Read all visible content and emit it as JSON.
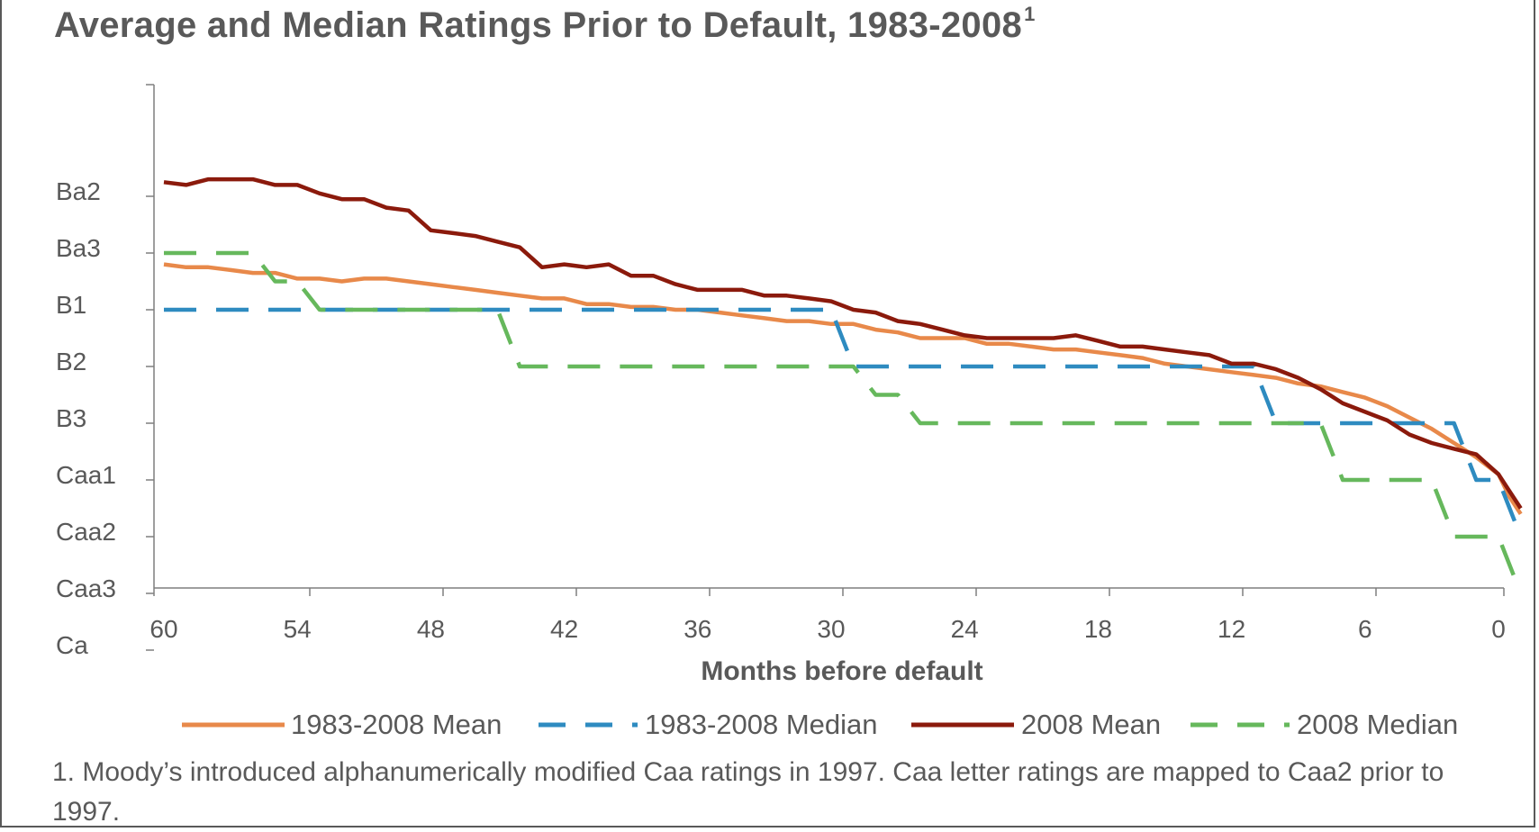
{
  "chart_data": {
    "type": "line",
    "title": "Average and Median Ratings Prior to Default, 1983-2008",
    "title_superscript": "1",
    "xlabel": "Months before default",
    "ylabel": "",
    "x_ticks": [
      "60",
      "54",
      "48",
      "42",
      "36",
      "30",
      "24",
      "18",
      "12",
      "6",
      "0"
    ],
    "y_categories": [
      "Ba2",
      "Ba3",
      "B1",
      "B2",
      "B3",
      "Caa1",
      "Caa2",
      "Caa3",
      "Ca"
    ],
    "y_numeric_note": "Ratings mapped to numeric levels: Ba2=0, Ba3=1, B1=2, B2=3, B3=4, Caa1=5, Caa2=6, Caa3=7, Ca=8",
    "xlim": [
      60,
      0
    ],
    "ylim": [
      -1,
      8
    ],
    "grid": false,
    "legend_position": "bottom",
    "series": [
      {
        "name": "1983-2008 Mean",
        "color": "#E8894A",
        "style": "solid",
        "points": [
          [
            60,
            1.2
          ],
          [
            59,
            1.25
          ],
          [
            58,
            1.25
          ],
          [
            57,
            1.3
          ],
          [
            56,
            1.35
          ],
          [
            55,
            1.35
          ],
          [
            54,
            1.45
          ],
          [
            53,
            1.45
          ],
          [
            52,
            1.5
          ],
          [
            51,
            1.45
          ],
          [
            50,
            1.45
          ],
          [
            49,
            1.5
          ],
          [
            48,
            1.55
          ],
          [
            47,
            1.6
          ],
          [
            46,
            1.65
          ],
          [
            45,
            1.7
          ],
          [
            44,
            1.75
          ],
          [
            43,
            1.8
          ],
          [
            42,
            1.8
          ],
          [
            41,
            1.9
          ],
          [
            40,
            1.9
          ],
          [
            39,
            1.95
          ],
          [
            38,
            1.95
          ],
          [
            37,
            2.0
          ],
          [
            36,
            2.0
          ],
          [
            35,
            2.05
          ],
          [
            34,
            2.1
          ],
          [
            33,
            2.15
          ],
          [
            32,
            2.2
          ],
          [
            31,
            2.2
          ],
          [
            30,
            2.25
          ],
          [
            29,
            2.25
          ],
          [
            28,
            2.35
          ],
          [
            27,
            2.4
          ],
          [
            26,
            2.5
          ],
          [
            25,
            2.5
          ],
          [
            24,
            2.5
          ],
          [
            23,
            2.6
          ],
          [
            22,
            2.6
          ],
          [
            21,
            2.65
          ],
          [
            20,
            2.7
          ],
          [
            19,
            2.7
          ],
          [
            18,
            2.75
          ],
          [
            17,
            2.8
          ],
          [
            16,
            2.85
          ],
          [
            15,
            2.95
          ],
          [
            14,
            3.0
          ],
          [
            13,
            3.05
          ],
          [
            12,
            3.1
          ],
          [
            11,
            3.15
          ],
          [
            10,
            3.2
          ],
          [
            9,
            3.3
          ],
          [
            8,
            3.35
          ],
          [
            7,
            3.45
          ],
          [
            6,
            3.55
          ],
          [
            5,
            3.7
          ],
          [
            4,
            3.9
          ],
          [
            3,
            4.1
          ],
          [
            2,
            4.35
          ],
          [
            1,
            4.6
          ],
          [
            0,
            4.9
          ],
          [
            -0.5,
            5.3
          ],
          [
            -1,
            5.6
          ]
        ]
      },
      {
        "name": "1983-2008 Median",
        "color": "#2E8BC0",
        "style": "dashed",
        "points": [
          [
            60,
            2
          ],
          [
            30,
            2
          ],
          [
            29,
            3
          ],
          [
            11,
            3
          ],
          [
            10,
            4
          ],
          [
            2,
            4
          ],
          [
            1,
            5
          ],
          [
            0,
            5
          ],
          [
            -1,
            6
          ]
        ]
      },
      {
        "name": "2008 Mean",
        "color": "#8B1A0C",
        "style": "solid",
        "points": [
          [
            60,
            -0.25
          ],
          [
            59,
            -0.2
          ],
          [
            58,
            -0.3
          ],
          [
            57,
            -0.3
          ],
          [
            56,
            -0.3
          ],
          [
            55,
            -0.2
          ],
          [
            54,
            -0.2
          ],
          [
            53,
            -0.05
          ],
          [
            52,
            0.05
          ],
          [
            51,
            0.05
          ],
          [
            50,
            0.2
          ],
          [
            49,
            0.25
          ],
          [
            48,
            0.6
          ],
          [
            47,
            0.65
          ],
          [
            46,
            0.7
          ],
          [
            45,
            0.8
          ],
          [
            44,
            0.9
          ],
          [
            43,
            1.25
          ],
          [
            42,
            1.2
          ],
          [
            41,
            1.25
          ],
          [
            40,
            1.2
          ],
          [
            39,
            1.4
          ],
          [
            38,
            1.4
          ],
          [
            37,
            1.55
          ],
          [
            36,
            1.65
          ],
          [
            35,
            1.65
          ],
          [
            34,
            1.65
          ],
          [
            33,
            1.75
          ],
          [
            32,
            1.75
          ],
          [
            31,
            1.8
          ],
          [
            30,
            1.85
          ],
          [
            29,
            2.0
          ],
          [
            28,
            2.05
          ],
          [
            27,
            2.2
          ],
          [
            26,
            2.25
          ],
          [
            25,
            2.35
          ],
          [
            24,
            2.45
          ],
          [
            23,
            2.5
          ],
          [
            22,
            2.5
          ],
          [
            21,
            2.5
          ],
          [
            20,
            2.5
          ],
          [
            19,
            2.45
          ],
          [
            18,
            2.55
          ],
          [
            17,
            2.65
          ],
          [
            16,
            2.65
          ],
          [
            15,
            2.7
          ],
          [
            14,
            2.75
          ],
          [
            13,
            2.8
          ],
          [
            12,
            2.95
          ],
          [
            11,
            2.95
          ],
          [
            10,
            3.05
          ],
          [
            9,
            3.2
          ],
          [
            8,
            3.4
          ],
          [
            7,
            3.65
          ],
          [
            6,
            3.8
          ],
          [
            5,
            3.95
          ],
          [
            4,
            4.2
          ],
          [
            3,
            4.35
          ],
          [
            2,
            4.45
          ],
          [
            1,
            4.55
          ],
          [
            0,
            4.9
          ],
          [
            -0.5,
            5.2
          ],
          [
            -1,
            5.5
          ]
        ]
      },
      {
        "name": "2008 Median",
        "color": "#66B85C",
        "style": "dashed",
        "points": [
          [
            60,
            1
          ],
          [
            56,
            1
          ],
          [
            55,
            1.5
          ],
          [
            54,
            1.5
          ],
          [
            53,
            2
          ],
          [
            45,
            2
          ],
          [
            44,
            3
          ],
          [
            29,
            3
          ],
          [
            28,
            3.5
          ],
          [
            27,
            3.5
          ],
          [
            26,
            4
          ],
          [
            8,
            4
          ],
          [
            7,
            5
          ],
          [
            3,
            5
          ],
          [
            2,
            6
          ],
          [
            1,
            6
          ],
          [
            0,
            6
          ],
          [
            -1,
            7
          ]
        ]
      }
    ]
  },
  "footnote": "1. Moody’s introduced alphanumerically modified Caa ratings in 1997. Caa letter ratings are mapped to Caa2 prior to 1997."
}
